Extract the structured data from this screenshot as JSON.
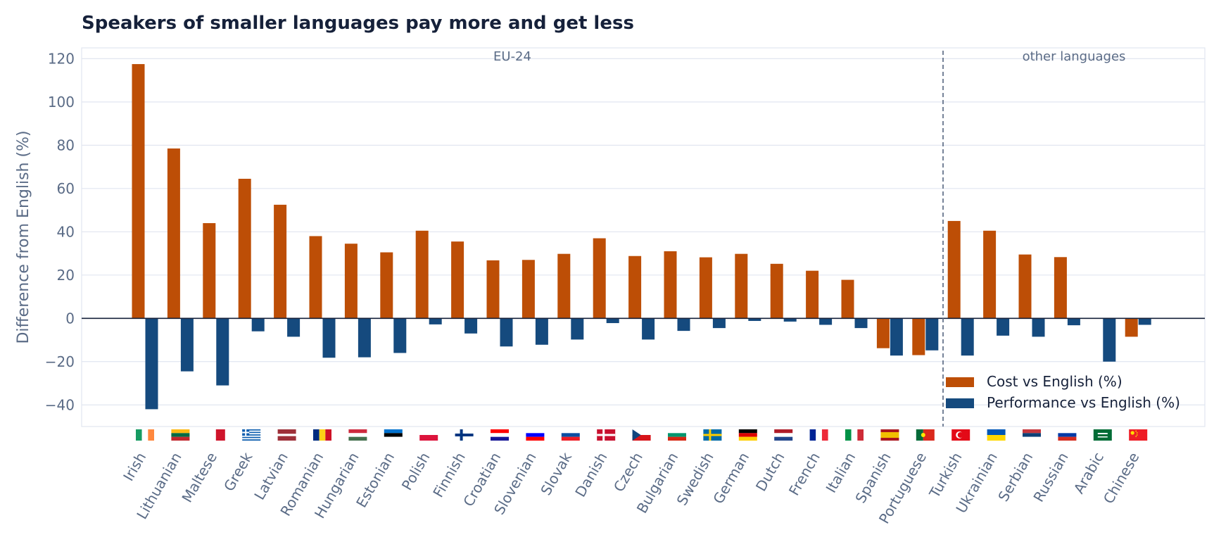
{
  "chart_data": {
    "type": "bar",
    "title": "Speakers of smaller languages pay more and get less",
    "xlabel": "",
    "ylabel": "Difference from English (%)",
    "ylim": [
      -50,
      125
    ],
    "yticks": [
      120,
      100,
      80,
      60,
      40,
      20,
      0,
      -20,
      -40
    ],
    "ytick_labels": [
      "120",
      "100",
      "80",
      "60",
      "40",
      "20",
      "0",
      "−20",
      "−40"
    ],
    "grid": "horizontal",
    "legend_position": "bottom-right",
    "categories": [
      "Irish",
      "Lithuanian",
      "Maltese",
      "Greek",
      "Latvian",
      "Romanian",
      "Hungarian",
      "Estonian",
      "Polish",
      "Finnish",
      "Croatian",
      "Slovenian",
      "Slovak",
      "Danish",
      "Czech",
      "Bulgarian",
      "Swedish",
      "German",
      "Dutch",
      "French",
      "Italian",
      "Spanish",
      "Portuguese",
      "Turkish",
      "Ukrainian",
      "Serbian",
      "Russian",
      "Arabic",
      "Chinese"
    ],
    "series": [
      {
        "name": "Cost vs English (%)",
        "color": "#bd4e06",
        "values": [
          117.5,
          78.5,
          44,
          64.5,
          52.5,
          38,
          34.5,
          30.5,
          40.5,
          35.5,
          26.8,
          27,
          29.8,
          37,
          28.8,
          31,
          28.2,
          29.8,
          25.2,
          22,
          17.8,
          -13.8,
          -17,
          45,
          40.5,
          29.5,
          28.3,
          0,
          -8.5
        ]
      },
      {
        "name": "Performance vs English (%)",
        "color": "#154a7e",
        "values": [
          -42,
          -24.5,
          -31,
          -6,
          -8.5,
          -18.2,
          -18,
          -16,
          -2.8,
          -7,
          -13,
          -12.2,
          -9.8,
          -2.2,
          -9.8,
          -5.8,
          -4.5,
          -1.2,
          -1.5,
          -3,
          -4.5,
          -17.2,
          -14.8,
          -17.2,
          -8,
          -8.5,
          -3.2,
          -20,
          -3
        ]
      }
    ],
    "divider_after_category": "Portuguese",
    "region_labels": [
      "EU-24",
      "other languages"
    ],
    "flags": [
      "ireland-flag",
      "lithuania-flag",
      "malta-flag",
      "greece-flag",
      "latvia-flag",
      "romania-flag",
      "hungary-flag",
      "estonia-flag",
      "poland-flag",
      "finland-flag",
      "croatia-flag",
      "slovenia-flag",
      "slovakia-flag",
      "denmark-flag",
      "czechia-flag",
      "bulgaria-flag",
      "sweden-flag",
      "germany-flag",
      "netherlands-flag",
      "france-flag",
      "italy-flag",
      "spain-flag",
      "portugal-flag",
      "turkey-flag",
      "ukraine-flag",
      "serbia-flag",
      "russia-flag",
      "saudi-arabia-flag",
      "china-flag"
    ],
    "colors": {
      "text": "#16213a",
      "muted": "#5a6b86",
      "grid": "#e1e6f0",
      "zero_line": "#16213a",
      "divider": "#54647e"
    }
  }
}
